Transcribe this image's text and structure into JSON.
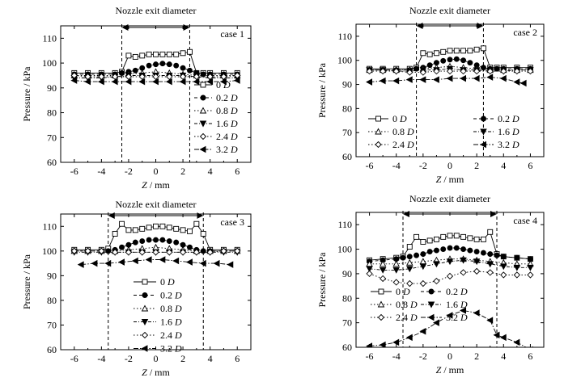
{
  "x_axis_label_italic": "Z",
  "x_axis_label_unit": " / mm",
  "legend_unit": "D",
  "chart_data": [
    {
      "type": "line",
      "panel": "case 1",
      "title": "Nozzle exit diameter",
      "xlabel": "Z / mm",
      "ylabel": "Pressure / kPa",
      "xlim": [
        -7,
        7
      ],
      "ylim": [
        60,
        115
      ],
      "xticks": [
        -6,
        -4,
        -2,
        0,
        2,
        4,
        6
      ],
      "yticks": [
        60,
        70,
        80,
        90,
        100,
        110
      ],
      "nozzle_edges": [
        -2.5,
        2.5
      ],
      "legend_position": "right",
      "series": [
        {
          "name": "0",
          "x": [
            -6,
            -5,
            -4,
            -3,
            -2.5,
            -2,
            -1.5,
            -1,
            -0.5,
            0,
            0.5,
            1,
            1.5,
            2,
            2.5,
            3,
            3.5,
            4,
            5,
            6
          ],
          "values": [
            96,
            96,
            96,
            96,
            96.5,
            103,
            102.5,
            103,
            103.5,
            103.5,
            103.5,
            103.5,
            103.5,
            104,
            104.5,
            96,
            96,
            96,
            96,
            96
          ]
        },
        {
          "name": "0.2",
          "x": [
            -6,
            -5,
            -4,
            -3,
            -2.5,
            -2,
            -1.5,
            -1,
            -0.5,
            0,
            0.5,
            1,
            1.5,
            2,
            2.5,
            3,
            3.5,
            4,
            5,
            6
          ],
          "values": [
            95.5,
            95.5,
            95.5,
            95.5,
            96,
            96.5,
            97,
            98,
            99,
            99.5,
            99.8,
            99.5,
            99,
            98,
            97,
            96,
            95.5,
            95.5,
            95.5,
            95.5
          ]
        },
        {
          "name": "0.8",
          "x": [
            -6,
            -5,
            -4,
            -3,
            -2,
            -1,
            0,
            1,
            2,
            3,
            4,
            5,
            6
          ],
          "values": [
            95,
            95,
            95,
            95,
            95.5,
            96,
            96.5,
            96,
            95.5,
            95,
            95,
            95,
            95
          ]
        },
        {
          "name": "1.6",
          "x": [
            -6,
            -5,
            -4,
            -3,
            -2,
            -1,
            0,
            1,
            2,
            3,
            4,
            5,
            6
          ],
          "values": [
            94,
            94,
            94,
            94.5,
            95,
            95,
            95,
            95,
            95,
            94.5,
            94,
            94,
            94
          ]
        },
        {
          "name": "2.4",
          "x": [
            -6,
            -5,
            -4,
            -3,
            -2,
            -1,
            0,
            1,
            2,
            3,
            4,
            5,
            6
          ],
          "values": [
            95,
            94.5,
            94.5,
            94.5,
            94.5,
            94.5,
            94.5,
            94.5,
            94.5,
            94.5,
            94.5,
            94.5,
            95
          ]
        },
        {
          "name": "3.2",
          "x": [
            -6,
            -5,
            -4,
            -3,
            -2,
            -1,
            0,
            1,
            2,
            3,
            4,
            5,
            6
          ],
          "values": [
            93,
            92.5,
            92.5,
            92.5,
            92.5,
            92.5,
            92.5,
            92.5,
            92.5,
            92.5,
            92.5,
            92.5,
            93
          ]
        }
      ]
    },
    {
      "type": "line",
      "panel": "case 2",
      "title": "Nozzle exit diameter",
      "xlabel": "Z / mm",
      "ylabel": "Pressure / kPa",
      "xlim": [
        -7,
        7
      ],
      "ylim": [
        60,
        115
      ],
      "xticks": [
        -6,
        -4,
        -2,
        0,
        2,
        4,
        6
      ],
      "yticks": [
        60,
        70,
        80,
        90,
        100,
        110
      ],
      "nozzle_edges": [
        -2.5,
        2.5
      ],
      "legend_position": "bottom",
      "series": [
        {
          "name": "0",
          "x": [
            -6,
            -5,
            -4,
            -3,
            -2.5,
            -2,
            -1.5,
            -1,
            -0.5,
            0,
            0.5,
            1,
            1.5,
            2,
            2.5,
            3,
            3.5,
            4,
            5,
            6
          ],
          "values": [
            96.5,
            96.5,
            96.5,
            96.5,
            97,
            103,
            102.5,
            103,
            103.5,
            104,
            104,
            104,
            104,
            104.5,
            105,
            97,
            97,
            97,
            97,
            97
          ]
        },
        {
          "name": "0.2",
          "x": [
            -6,
            -5,
            -4,
            -3,
            -2.5,
            -2,
            -1.5,
            -1,
            -0.5,
            0,
            0.5,
            1,
            1.5,
            2,
            2.5,
            3,
            3.5,
            4,
            5,
            6
          ],
          "values": [
            96,
            96,
            96,
            96,
            96.5,
            97,
            98,
            99,
            99.8,
            100.3,
            100.5,
            100,
            99,
            98,
            97,
            96.5,
            96.5,
            96.5,
            96.5,
            96.5
          ]
        },
        {
          "name": "0.8",
          "x": [
            -6,
            -5,
            -4,
            -3,
            -2,
            -1,
            0,
            1,
            2,
            3,
            4,
            5,
            6
          ],
          "values": [
            96,
            96,
            96,
            96,
            96.5,
            97,
            97.5,
            97,
            96.5,
            96,
            96,
            96,
            96
          ]
        },
        {
          "name": "1.6",
          "x": [
            -6,
            -5,
            -4,
            -3,
            -2,
            -1,
            0,
            1,
            2,
            3,
            4,
            5,
            6
          ],
          "values": [
            96,
            96,
            95.5,
            95.5,
            96,
            96,
            96.5,
            96,
            96,
            95.5,
            95.5,
            96,
            96
          ]
        },
        {
          "name": "2.4",
          "x": [
            -6,
            -5,
            -4,
            -3,
            -2,
            -1,
            0,
            1,
            2,
            3,
            4,
            5,
            6
          ],
          "values": [
            95.5,
            95.5,
            95.5,
            95,
            95,
            95.5,
            95.5,
            95.5,
            95.5,
            95.5,
            95.5,
            95.5,
            95.5
          ]
        },
        {
          "name": "3.2",
          "x": [
            -6,
            -5,
            -4,
            -3,
            -2,
            -1,
            0,
            1,
            2,
            3,
            4,
            5,
            5.5
          ],
          "values": [
            91,
            91.5,
            91.5,
            92,
            92,
            92,
            92.5,
            92.5,
            92.5,
            93,
            92.5,
            91,
            90.5
          ]
        }
      ]
    },
    {
      "type": "line",
      "panel": "case 3",
      "title": "Nozzle exit diameter",
      "xlabel": "Z / mm",
      "ylabel": "Pressure / kPa",
      "xlim": [
        -7,
        7
      ],
      "ylim": [
        60,
        115
      ],
      "xticks": [
        -6,
        -4,
        -2,
        0,
        2,
        4,
        6
      ],
      "yticks": [
        60,
        70,
        80,
        90,
        100,
        110
      ],
      "nozzle_edges": [
        -3.5,
        3.5
      ],
      "legend_position": "center",
      "series": [
        {
          "name": "0",
          "x": [
            -6,
            -5,
            -4,
            -3.5,
            -3,
            -2.5,
            -2,
            -1.5,
            -1,
            -0.5,
            0,
            0.5,
            1,
            1.5,
            2,
            2.5,
            3,
            3.5,
            4,
            5,
            6
          ],
          "values": [
            100.5,
            100.5,
            100.5,
            101,
            107,
            111,
            108.5,
            108.5,
            109,
            109.5,
            110,
            110,
            109.5,
            109,
            108.5,
            108,
            111,
            107,
            100.5,
            100.5,
            100.5
          ]
        },
        {
          "name": "0.2",
          "x": [
            -6,
            -5,
            -4,
            -3.5,
            -3,
            -2.5,
            -2,
            -1.5,
            -1,
            -0.5,
            0,
            0.5,
            1,
            1.5,
            2,
            2.5,
            3,
            3.5,
            4,
            5,
            6
          ],
          "values": [
            100,
            100,
            100,
            100,
            100.5,
            101.5,
            102.5,
            103.5,
            104,
            104.5,
            104.5,
            104.5,
            104,
            103.5,
            102.5,
            101.5,
            100.5,
            100,
            100,
            100,
            100
          ]
        },
        {
          "name": "0.8",
          "x": [
            -6,
            -5,
            -4,
            -3,
            -2,
            -1,
            0,
            1,
            2,
            3,
            4,
            5,
            6
          ],
          "values": [
            100,
            100,
            100,
            100,
            100.5,
            101,
            101.5,
            101,
            100.5,
            100,
            100,
            100,
            100
          ]
        },
        {
          "name": "1.6",
          "x": [
            -6,
            -5,
            -4,
            -3,
            -2,
            -1,
            0,
            1,
            2,
            3,
            4,
            5,
            6
          ],
          "values": [
            99.5,
            99.5,
            99.5,
            99.5,
            99.5,
            99.5,
            99.5,
            99.5,
            99.5,
            99.5,
            99.5,
            99.5,
            99.5
          ]
        },
        {
          "name": "2.4",
          "x": [
            -6,
            -5,
            -4,
            -3,
            -2,
            -1,
            0,
            1,
            2,
            3,
            4,
            5,
            6
          ],
          "values": [
            100,
            100,
            100,
            99.5,
            99.5,
            99.5,
            99.5,
            99.5,
            99.5,
            99.5,
            99.5,
            100,
            100
          ]
        },
        {
          "name": "3.2",
          "x": [
            -5.5,
            -4.5,
            -3.5,
            -2.5,
            -1.5,
            -0.5,
            0.5,
            1.5,
            2.5,
            3.5,
            4.5,
            5.5
          ],
          "values": [
            94.5,
            95,
            95,
            95.5,
            96,
            96.5,
            96.5,
            96,
            95.5,
            95,
            95,
            94.5
          ]
        }
      ]
    },
    {
      "type": "line",
      "panel": "case 4",
      "title": "Nozzle exit diameter",
      "xlabel": "Z / mm",
      "ylabel": "Pressure / kPa",
      "xlim": [
        -7,
        7
      ],
      "ylim": [
        60,
        115
      ],
      "xticks": [
        -6,
        -4,
        -2,
        0,
        2,
        4,
        6
      ],
      "yticks": [
        60,
        70,
        80,
        90,
        100,
        110
      ],
      "nozzle_edges": [
        -3.5,
        3.5
      ],
      "legend_position": "center-left",
      "series": [
        {
          "name": "0",
          "x": [
            -6,
            -5,
            -4,
            -3.5,
            -3,
            -2.5,
            -2,
            -1.5,
            -1,
            -0.5,
            0,
            0.5,
            1,
            1.5,
            2,
            2.5,
            3,
            3.5,
            4,
            5,
            6
          ],
          "values": [
            95.5,
            96,
            96.5,
            97,
            101,
            105,
            103,
            103.5,
            104,
            105,
            105.5,
            105.5,
            105,
            104.5,
            104,
            104,
            107,
            98,
            97,
            96.5,
            96
          ]
        },
        {
          "name": "0.2",
          "x": [
            -6,
            -5,
            -4,
            -3.5,
            -3,
            -2.5,
            -2,
            -1.5,
            -1,
            -0.5,
            0,
            0.5,
            1,
            1.5,
            2,
            2.5,
            3,
            3.5,
            4,
            5,
            6
          ],
          "values": [
            95,
            95.5,
            96,
            96.5,
            97,
            97.5,
            98,
            99,
            99.5,
            100,
            100.5,
            100.5,
            100,
            99.5,
            99,
            98.5,
            98,
            97.5,
            97,
            96.5,
            96
          ]
        },
        {
          "name": "0.8",
          "x": [
            -6,
            -5,
            -4,
            -3,
            -2,
            -1,
            0,
            1,
            2,
            3,
            4,
            5,
            6
          ],
          "values": [
            94,
            94,
            94,
            94.5,
            95,
            95.5,
            96,
            96,
            95.5,
            95,
            94.5,
            94,
            94
          ]
        },
        {
          "name": "1.6",
          "x": [
            -6,
            -5,
            -4,
            -3,
            -2,
            -1,
            0,
            1,
            2,
            3,
            4,
            5,
            6
          ],
          "values": [
            92,
            91.5,
            91.5,
            92,
            93,
            94,
            95,
            95.5,
            95,
            94,
            93,
            92.5,
            92.5
          ]
        },
        {
          "name": "2.4",
          "x": [
            -6,
            -5,
            -4,
            -3,
            -2,
            -1,
            0,
            1,
            2,
            3,
            4,
            5,
            6
          ],
          "values": [
            90,
            88,
            86.5,
            86,
            86,
            87,
            89,
            90.5,
            91,
            90.5,
            89.5,
            89.5,
            89.5
          ]
        },
        {
          "name": "3.2",
          "x": [
            -6,
            -5,
            -4,
            -3,
            -2,
            -1,
            0,
            1,
            2,
            3,
            3.5,
            4,
            5,
            6
          ],
          "values": [
            60.5,
            61,
            62,
            64,
            66.5,
            70,
            73,
            75,
            74,
            71,
            65,
            64,
            62,
            59
          ]
        }
      ]
    }
  ]
}
